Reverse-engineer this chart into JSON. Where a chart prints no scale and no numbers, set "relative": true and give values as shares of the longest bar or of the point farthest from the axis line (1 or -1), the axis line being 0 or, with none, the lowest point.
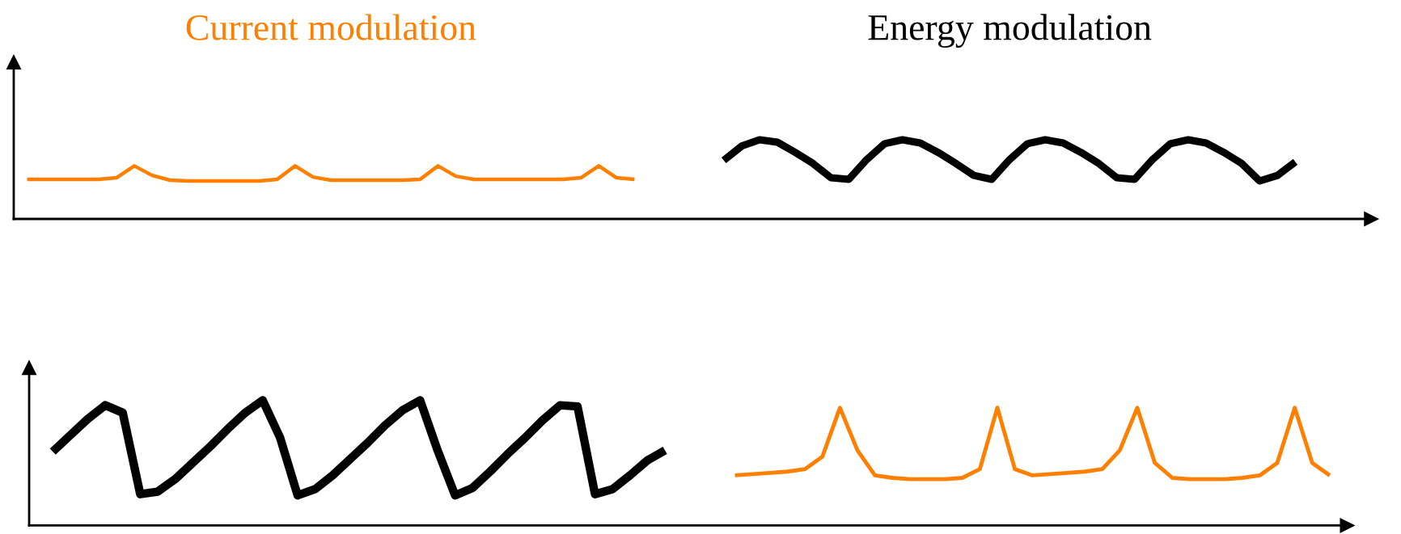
{
  "chart_data": [
    {
      "type": "line",
      "relative": true,
      "categories": [
        null,
        null,
        null,
        null,
        null,
        null,
        null,
        null,
        null,
        null,
        null,
        null,
        null,
        null,
        null,
        null,
        null,
        null,
        null,
        null,
        null,
        null,
        null,
        null,
        null,
        null,
        null,
        null,
        null,
        null,
        null,
        null,
        null,
        null,
        null,
        null,
        null,
        null,
        null,
        null,
        null,
        null,
        null,
        null,
        null,
        null,
        null,
        null,
        null,
        null,
        null,
        null,
        null,
        null,
        null,
        null,
        null,
        null,
        null,
        null,
        null,
        null,
        null,
        null,
        null,
        null,
        null,
        null,
        null,
        null,
        null,
        null
      ],
      "series": [
        {
          "name": "Current modulation",
          "color": "#ff7f00",
          "values": [
            0.5,
            0.5,
            0.5,
            0.5,
            0.5,
            0.52,
            0.67,
            0.55,
            0.49,
            0.48,
            0.48,
            0.48,
            0.48,
            0.48,
            0.5,
            0.67,
            0.53,
            0.49,
            0.49,
            0.49,
            0.49,
            0.49,
            0.5,
            0.67,
            0.54,
            0.5,
            0.5,
            0.5,
            0.5,
            0.5,
            0.5,
            0.52,
            0.67,
            0.52,
            0.5,
            null,
            null,
            null,
            null,
            null,
            null,
            null,
            null,
            null,
            null,
            null,
            null,
            null,
            null,
            null,
            null,
            null,
            null,
            null,
            null,
            null,
            null,
            null,
            null,
            null,
            null,
            null,
            null,
            null,
            null,
            null,
            null,
            null,
            null,
            null,
            null,
            null
          ]
        },
        {
          "name": "Energy modulation",
          "color": "#000000",
          "values": [
            null,
            null,
            null,
            null,
            null,
            null,
            null,
            null,
            null,
            null,
            null,
            null,
            null,
            null,
            null,
            null,
            null,
            null,
            null,
            null,
            null,
            null,
            null,
            null,
            null,
            null,
            null,
            null,
            null,
            null,
            null,
            null,
            null,
            null,
            null,
            null,
            null,
            null,
            null,
            0.74,
            0.92,
            1.0,
            0.97,
            0.84,
            0.7,
            0.52,
            0.5,
            0.75,
            0.95,
            1.0,
            0.96,
            0.84,
            0.7,
            0.55,
            0.5,
            0.75,
            0.95,
            1.0,
            0.96,
            0.84,
            0.7,
            0.52,
            0.5,
            0.75,
            0.95,
            1.0,
            0.96,
            0.84,
            0.7,
            0.48,
            0.55,
            0.72
          ]
        }
      ]
    },
    {
      "type": "line",
      "relative": true,
      "categories": [
        null,
        null,
        null,
        null,
        null,
        null,
        null,
        null,
        null,
        null,
        null,
        null,
        null,
        null,
        null,
        null,
        null,
        null,
        null,
        null,
        null,
        null,
        null,
        null,
        null,
        null,
        null,
        null,
        null,
        null,
        null,
        null,
        null,
        null,
        null,
        null,
        null,
        null,
        null,
        null,
        null,
        null,
        null,
        null,
        null,
        null,
        null,
        null,
        null,
        null,
        null,
        null,
        null,
        null,
        null,
        null,
        null,
        null,
        null,
        null,
        null,
        null,
        null,
        null,
        null,
        null,
        null,
        null,
        null,
        null,
        null,
        null,
        null,
        null
      ],
      "series": [
        {
          "color": "#000000",
          "values": [
            0.59,
            0.72,
            0.85,
            0.96,
            0.9,
            0.25,
            0.27,
            0.37,
            0.5,
            0.63,
            0.77,
            0.9,
            1.0,
            0.7,
            0.24,
            0.29,
            0.4,
            0.53,
            0.66,
            0.8,
            0.92,
            1.0,
            0.6,
            0.24,
            0.3,
            0.43,
            0.57,
            0.7,
            0.84,
            0.96,
            0.95,
            0.25,
            0.29,
            0.4,
            0.52,
            0.6,
            null,
            null,
            null,
            null,
            null,
            null,
            null,
            null,
            null,
            null,
            null,
            null,
            null,
            null,
            null,
            null,
            null,
            null,
            null,
            null,
            null,
            null,
            null,
            null,
            null,
            null,
            null,
            null,
            null,
            null,
            null,
            null,
            null,
            null,
            null,
            null,
            null,
            null
          ]
        },
        {
          "color": "#ff7f00",
          "values": [
            null,
            null,
            null,
            null,
            null,
            null,
            null,
            null,
            null,
            null,
            null,
            null,
            null,
            null,
            null,
            null,
            null,
            null,
            null,
            null,
            null,
            null,
            null,
            null,
            null,
            null,
            null,
            null,
            null,
            null,
            null,
            null,
            null,
            null,
            null,
            null,
            null,
            null,
            null,
            0.4,
            0.41,
            0.42,
            0.43,
            0.45,
            0.55,
            0.94,
            0.6,
            0.4,
            0.38,
            0.37,
            0.37,
            0.37,
            0.38,
            0.45,
            0.94,
            0.45,
            0.4,
            0.41,
            0.42,
            0.43,
            0.45,
            0.6,
            0.94,
            0.5,
            0.38,
            0.37,
            0.37,
            0.37,
            0.38,
            0.4,
            0.5,
            0.94,
            0.5,
            0.4
          ]
        }
      ]
    }
  ]
}
